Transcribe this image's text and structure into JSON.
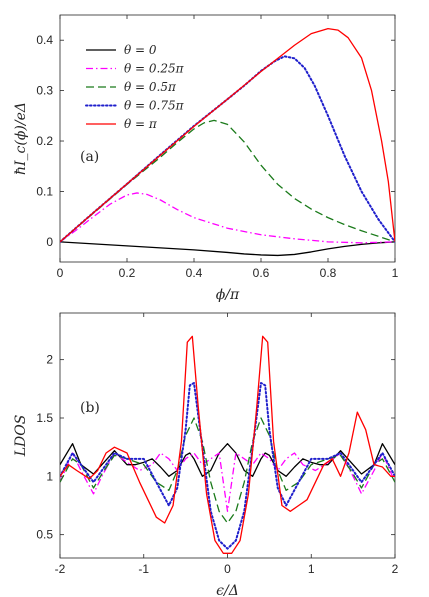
{
  "chart_data": [
    {
      "type": "line",
      "panel_label": "(a)",
      "xlabel": "ϕ/π",
      "ylabel": "ħI_c(ϕ)/eΔ",
      "xlim": [
        0,
        1
      ],
      "ylim": [
        -0.04,
        0.45
      ],
      "xticks": [
        "0",
        "0.2",
        "0.4",
        "0.6",
        "0.8",
        "1"
      ],
      "yticks": [
        "0",
        "0.1",
        "0.2",
        "0.3",
        "0.4"
      ],
      "legend_position": "top-left",
      "grid": false,
      "series": [
        {
          "name": "θ = 0",
          "color": "#000000",
          "dash": "solid",
          "x": [
            0,
            0.1,
            0.2,
            0.3,
            0.4,
            0.5,
            0.55,
            0.6,
            0.65,
            0.7,
            0.75,
            0.8,
            0.85,
            0.9,
            0.95,
            1.0
          ],
          "y": [
            0,
            -0.004,
            -0.008,
            -0.012,
            -0.016,
            -0.021,
            -0.024,
            -0.026,
            -0.027,
            -0.025,
            -0.02,
            -0.014,
            -0.009,
            -0.005,
            -0.002,
            0
          ]
        },
        {
          "name": "θ = 0.25π",
          "color": "#ff00ff",
          "dash": "dashdot",
          "x": [
            0,
            0.05,
            0.1,
            0.15,
            0.2,
            0.23,
            0.26,
            0.3,
            0.35,
            0.4,
            0.5,
            0.6,
            0.7,
            0.8,
            0.9,
            0.95,
            1.0
          ],
          "y": [
            0,
            0.024,
            0.05,
            0.075,
            0.093,
            0.097,
            0.094,
            0.083,
            0.064,
            0.048,
            0.027,
            0.014,
            0.006,
            0.0,
            -0.002,
            -0.001,
            0
          ]
        },
        {
          "name": "θ = 0.5π",
          "color": "#1a7a1a",
          "dash": "dashed",
          "x": [
            0,
            0.1,
            0.2,
            0.3,
            0.35,
            0.4,
            0.43,
            0.46,
            0.5,
            0.55,
            0.6,
            0.65,
            0.7,
            0.75,
            0.8,
            0.85,
            0.9,
            0.95,
            1.0
          ],
          "y": [
            0,
            0.057,
            0.114,
            0.168,
            0.197,
            0.224,
            0.236,
            0.241,
            0.233,
            0.198,
            0.152,
            0.114,
            0.086,
            0.065,
            0.048,
            0.034,
            0.022,
            0.011,
            0
          ]
        },
        {
          "name": "θ = 0.75π",
          "color": "#1f1fcc",
          "dash": "dotted",
          "x": [
            0,
            0.1,
            0.2,
            0.3,
            0.4,
            0.5,
            0.55,
            0.6,
            0.64,
            0.67,
            0.7,
            0.73,
            0.76,
            0.8,
            0.85,
            0.9,
            0.95,
            1.0
          ],
          "y": [
            0,
            0.058,
            0.115,
            0.173,
            0.23,
            0.283,
            0.31,
            0.339,
            0.358,
            0.368,
            0.364,
            0.345,
            0.31,
            0.25,
            0.17,
            0.1,
            0.045,
            0
          ]
        },
        {
          "name": "θ = π",
          "color": "#ff0000",
          "dash": "solid",
          "x": [
            0,
            0.1,
            0.2,
            0.3,
            0.4,
            0.5,
            0.6,
            0.7,
            0.75,
            0.8,
            0.83,
            0.86,
            0.9,
            0.93,
            0.96,
            0.98,
            1.0
          ],
          "y": [
            0,
            0.058,
            0.115,
            0.172,
            0.229,
            0.283,
            0.338,
            0.39,
            0.413,
            0.423,
            0.42,
            0.405,
            0.365,
            0.3,
            0.2,
            0.12,
            0
          ]
        }
      ]
    },
    {
      "type": "line",
      "panel_label": "(b)",
      "xlabel": "ϵ/Δ",
      "ylabel": "LDOS",
      "xlim": [
        -2,
        2
      ],
      "ylim": [
        0.3,
        2.4
      ],
      "xticks": [
        "-2",
        "-1",
        "0",
        "1",
        "2"
      ],
      "yticks": [
        "0.5",
        "1",
        "1.5",
        "2"
      ],
      "grid": false,
      "series": [
        {
          "color": "#000000",
          "dash": "solid",
          "x": [
            -2,
            -1.85,
            -1.75,
            -1.6,
            -1.5,
            -1.35,
            -1.2,
            -1.1,
            -1.0,
            -0.9,
            -0.8,
            -0.7,
            -0.6,
            -0.5,
            -0.45,
            -0.4,
            -0.3,
            -0.2,
            -0.1,
            0,
            0.1,
            0.2,
            0.3,
            0.4,
            0.45,
            0.5,
            0.6,
            0.7,
            0.8,
            0.9,
            1.0,
            1.1,
            1.2,
            1.35,
            1.5,
            1.6,
            1.75,
            1.85,
            2.0
          ],
          "y": [
            1.1,
            1.28,
            1.1,
            1.02,
            1.1,
            1.22,
            1.1,
            1.1,
            1.12,
            1.15,
            1.08,
            1.0,
            1.05,
            1.18,
            1.2,
            1.15,
            1.0,
            1.05,
            1.2,
            1.28,
            1.2,
            1.05,
            1.0,
            1.15,
            1.2,
            1.18,
            1.05,
            1.0,
            1.08,
            1.15,
            1.12,
            1.1,
            1.1,
            1.22,
            1.1,
            1.02,
            1.1,
            1.28,
            1.1
          ]
        },
        {
          "color": "#ff00ff",
          "dash": "dashdot",
          "x": [
            -2,
            -1.85,
            -1.75,
            -1.6,
            -1.5,
            -1.35,
            -1.2,
            -1.05,
            -0.9,
            -0.8,
            -0.7,
            -0.6,
            -0.5,
            -0.4,
            -0.3,
            -0.2,
            -0.1,
            0,
            0.1,
            0.2,
            0.3,
            0.4,
            0.5,
            0.6,
            0.7,
            0.8,
            0.9,
            1.05,
            1.2,
            1.35,
            1.5,
            1.6,
            1.75,
            1.85,
            2.0
          ],
          "y": [
            0.95,
            1.2,
            1.05,
            0.85,
            1.0,
            1.2,
            1.12,
            1.05,
            1.1,
            1.2,
            1.15,
            1.05,
            1.15,
            1.2,
            1.1,
            1.15,
            1.2,
            0.7,
            1.2,
            1.15,
            1.1,
            1.2,
            1.15,
            1.05,
            1.15,
            1.2,
            1.1,
            1.05,
            1.12,
            1.2,
            1.0,
            0.85,
            1.05,
            1.2,
            0.95
          ]
        },
        {
          "color": "#1a7a1a",
          "dash": "dashed",
          "x": [
            -2,
            -1.85,
            -1.75,
            -1.6,
            -1.5,
            -1.35,
            -1.2,
            -1.0,
            -0.85,
            -0.7,
            -0.6,
            -0.5,
            -0.4,
            -0.3,
            -0.2,
            -0.1,
            0,
            0.1,
            0.2,
            0.3,
            0.4,
            0.5,
            0.6,
            0.7,
            0.85,
            1.0,
            1.2,
            1.35,
            1.5,
            1.6,
            1.75,
            1.85,
            2.0
          ],
          "y": [
            0.95,
            1.15,
            1.1,
            0.9,
            1.02,
            1.18,
            1.15,
            1.1,
            0.95,
            0.88,
            1.05,
            1.35,
            1.5,
            1.3,
            0.95,
            0.7,
            0.6,
            0.7,
            0.95,
            1.3,
            1.5,
            1.35,
            1.05,
            0.88,
            0.95,
            1.1,
            1.15,
            1.18,
            1.02,
            0.9,
            1.1,
            1.15,
            0.95
          ]
        },
        {
          "color": "#1f1fcc",
          "dash": "dotted",
          "x": [
            -2,
            -1.85,
            -1.75,
            -1.6,
            -1.5,
            -1.35,
            -1.2,
            -1.0,
            -0.85,
            -0.7,
            -0.6,
            -0.5,
            -0.45,
            -0.4,
            -0.3,
            -0.2,
            -0.1,
            0,
            0.1,
            0.2,
            0.3,
            0.4,
            0.45,
            0.5,
            0.6,
            0.7,
            0.85,
            1.0,
            1.2,
            1.35,
            1.5,
            1.6,
            1.75,
            1.85,
            2.0
          ],
          "y": [
            1.0,
            1.2,
            1.1,
            0.95,
            1.05,
            1.2,
            1.15,
            1.15,
            0.95,
            0.75,
            0.9,
            1.4,
            1.78,
            1.8,
            1.25,
            0.7,
            0.45,
            0.38,
            0.45,
            0.7,
            1.25,
            1.8,
            1.78,
            1.4,
            0.9,
            0.75,
            0.95,
            1.15,
            1.15,
            1.2,
            1.05,
            0.95,
            1.1,
            1.2,
            1.0
          ]
        },
        {
          "color": "#ff0000",
          "dash": "solid",
          "x": [
            -2,
            -1.9,
            -1.8,
            -1.65,
            -1.55,
            -1.45,
            -1.35,
            -1.2,
            -1.05,
            -0.95,
            -0.85,
            -0.75,
            -0.65,
            -0.55,
            -0.48,
            -0.42,
            -0.35,
            -0.25,
            -0.15,
            -0.05,
            0,
            0.05,
            0.15,
            0.25,
            0.35,
            0.42,
            0.48,
            0.55,
            0.65,
            0.75,
            0.85,
            0.95,
            1.05,
            1.15,
            1.25,
            1.35,
            1.45,
            1.55,
            1.65,
            1.75,
            1.85,
            1.95,
            2.0
          ],
          "y": [
            1.0,
            1.1,
            1.05,
            0.98,
            1.05,
            1.2,
            1.25,
            1.2,
            0.95,
            0.8,
            0.65,
            0.6,
            0.75,
            1.3,
            2.15,
            2.2,
            1.6,
            0.85,
            0.45,
            0.34,
            0.34,
            0.34,
            0.45,
            0.85,
            1.6,
            2.2,
            2.15,
            1.3,
            0.75,
            0.7,
            0.75,
            0.8,
            0.95,
            1.1,
            1.15,
            1.0,
            1.2,
            1.55,
            1.4,
            1.1,
            1.08,
            1.0,
            1.0
          ]
        }
      ]
    }
  ]
}
